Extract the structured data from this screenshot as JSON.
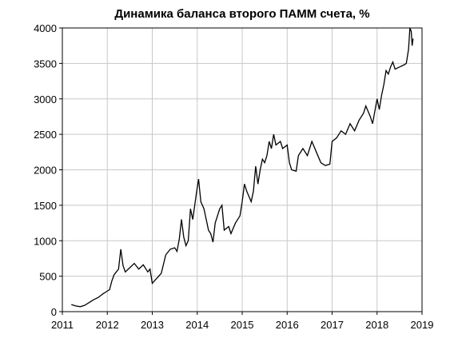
{
  "chart_data": {
    "type": "line",
    "title": "Динамика баланса второго ПАММ счета, %",
    "x": [
      2011.2,
      2011.3,
      2011.4,
      2011.5,
      2011.6,
      2011.7,
      2011.8,
      2011.9,
      2012.0,
      2012.05,
      2012.1,
      2012.15,
      2012.2,
      2012.25,
      2012.3,
      2012.35,
      2012.4,
      2012.5,
      2012.6,
      2012.7,
      2012.8,
      2012.9,
      2012.95,
      2013.0,
      2013.1,
      2013.2,
      2013.3,
      2013.4,
      2013.5,
      2013.55,
      2013.6,
      2013.65,
      2013.7,
      2013.75,
      2013.8,
      2013.85,
      2013.9,
      2014.0,
      2014.03,
      2014.08,
      2014.15,
      2014.2,
      2014.25,
      2014.3,
      2014.35,
      2014.4,
      2014.5,
      2014.55,
      2014.6,
      2014.7,
      2014.75,
      2014.85,
      2014.95,
      2015.0,
      2015.05,
      2015.1,
      2015.2,
      2015.25,
      2015.3,
      2015.35,
      2015.4,
      2015.45,
      2015.5,
      2015.55,
      2015.6,
      2015.65,
      2015.7,
      2015.75,
      2015.85,
      2015.9,
      2016.0,
      2016.05,
      2016.1,
      2016.2,
      2016.25,
      2016.35,
      2016.45,
      2016.55,
      2016.65,
      2016.75,
      2016.85,
      2016.95,
      2017.0,
      2017.1,
      2017.2,
      2017.3,
      2017.4,
      2017.5,
      2017.6,
      2017.7,
      2017.75,
      2017.85,
      2017.9,
      2018.0,
      2018.05,
      2018.1,
      2018.15,
      2018.2,
      2018.25,
      2018.3,
      2018.35,
      2018.4,
      2018.5,
      2018.6,
      2018.65,
      2018.7,
      2018.73,
      2018.76,
      2018.78,
      2018.8
    ],
    "series": [
      {
        "color": "#000000",
        "values": [
          100,
          80,
          70,
          90,
          130,
          170,
          200,
          250,
          290,
          310,
          430,
          520,
          560,
          600,
          880,
          650,
          560,
          620,
          680,
          600,
          660,
          560,
          600,
          400,
          470,
          540,
          800,
          880,
          900,
          850,
          1020,
          1300,
          1050,
          930,
          1000,
          1450,
          1300,
          1750,
          1870,
          1550,
          1450,
          1300,
          1150,
          1100,
          980,
          1250,
          1450,
          1500,
          1150,
          1200,
          1100,
          1250,
          1350,
          1550,
          1800,
          1700,
          1550,
          1700,
          2050,
          1800,
          2000,
          2150,
          2100,
          2200,
          2400,
          2300,
          2500,
          2350,
          2400,
          2300,
          2350,
          2100,
          2000,
          1980,
          2200,
          2300,
          2200,
          2400,
          2250,
          2100,
          2060,
          2080,
          2400,
          2450,
          2550,
          2500,
          2650,
          2550,
          2700,
          2800,
          2900,
          2750,
          2650,
          3000,
          2850,
          3050,
          3200,
          3400,
          3350,
          3450,
          3520,
          3420,
          3450,
          3480,
          3500,
          3700,
          4000,
          3950,
          3750,
          3850
        ]
      }
    ],
    "xlim": [
      2011,
      2019
    ],
    "xticks": [
      2011,
      2012,
      2013,
      2014,
      2015,
      2016,
      2017,
      2018,
      2019
    ],
    "ylim": [
      0,
      4000
    ],
    "yticks": [
      0,
      500,
      1000,
      1500,
      2000,
      2500,
      3000,
      3500,
      4000
    ],
    "grid": true
  }
}
